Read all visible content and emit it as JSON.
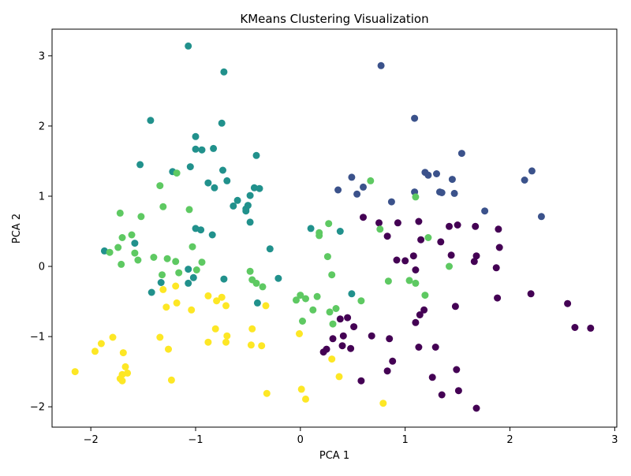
{
  "chart_data": {
    "type": "scatter",
    "title": "KMeans Clustering Visualization",
    "xlabel": "PCA 1",
    "ylabel": "PCA 2",
    "xlim": [
      -2.37,
      3.02
    ],
    "ylim": [
      -2.29,
      3.38
    ],
    "xticks": [
      -2,
      -1,
      0,
      1,
      2,
      3
    ],
    "yticks": [
      -2,
      -1,
      0,
      1,
      2,
      3
    ],
    "grid": false,
    "legend": "none",
    "cluster_colors": [
      "#440154",
      "#3b528b",
      "#21918c",
      "#5ec962",
      "#fde725"
    ],
    "series": [
      {
        "cluster": 0,
        "points": [
          [
            0.6,
            0.7
          ],
          [
            0.75,
            0.62
          ],
          [
            0.93,
            0.62
          ],
          [
            0.83,
            0.43
          ],
          [
            1.13,
            0.64
          ],
          [
            1.15,
            0.38
          ],
          [
            1.42,
            0.57
          ],
          [
            1.5,
            0.59
          ],
          [
            1.34,
            0.35
          ],
          [
            1.67,
            0.57
          ],
          [
            1.89,
            0.53
          ],
          [
            1.44,
            0.16
          ],
          [
            1.68,
            0.15
          ],
          [
            1.66,
            0.07
          ],
          [
            1.9,
            0.27
          ],
          [
            1.08,
            0.15
          ],
          [
            0.92,
            0.09
          ],
          [
            1.0,
            0.08
          ],
          [
            1.1,
            -0.05
          ],
          [
            1.87,
            -0.02
          ],
          [
            2.2,
            -0.39
          ],
          [
            1.88,
            -0.45
          ],
          [
            1.48,
            -0.57
          ],
          [
            1.18,
            -0.62
          ],
          [
            1.14,
            -0.69
          ],
          [
            1.1,
            -0.8
          ],
          [
            0.45,
            -0.73
          ],
          [
            0.38,
            -0.75
          ],
          [
            0.51,
            -0.86
          ],
          [
            0.68,
            -0.99
          ],
          [
            0.41,
            -0.99
          ],
          [
            0.31,
            -1.03
          ],
          [
            0.85,
            -1.03
          ],
          [
            0.4,
            -1.13
          ],
          [
            0.48,
            -1.17
          ],
          [
            0.25,
            -1.18
          ],
          [
            0.22,
            -1.22
          ],
          [
            1.13,
            -1.15
          ],
          [
            1.29,
            -1.15
          ],
          [
            0.88,
            -1.35
          ],
          [
            1.49,
            -1.47
          ],
          [
            0.83,
            -1.49
          ],
          [
            1.26,
            -1.58
          ],
          [
            0.58,
            -1.63
          ],
          [
            1.51,
            -1.77
          ],
          [
            1.35,
            -1.83
          ],
          [
            1.68,
            -2.02
          ],
          [
            2.55,
            -0.53
          ],
          [
            2.62,
            -0.87
          ],
          [
            2.77,
            -0.88
          ]
        ]
      },
      {
        "cluster": 1,
        "points": [
          [
            0.77,
            2.86
          ],
          [
            1.09,
            2.11
          ],
          [
            1.54,
            1.61
          ],
          [
            1.76,
            0.79
          ],
          [
            2.3,
            0.71
          ],
          [
            2.21,
            1.36
          ],
          [
            2.14,
            1.23
          ],
          [
            1.19,
            1.34
          ],
          [
            1.22,
            1.3
          ],
          [
            1.3,
            1.32
          ],
          [
            1.45,
            1.24
          ],
          [
            0.49,
            1.27
          ],
          [
            0.6,
            1.13
          ],
          [
            0.36,
            1.09
          ],
          [
            0.54,
            1.03
          ],
          [
            1.09,
            1.06
          ],
          [
            1.33,
            1.06
          ],
          [
            1.35,
            1.05
          ],
          [
            1.47,
            1.04
          ],
          [
            0.87,
            0.92
          ]
        ]
      },
      {
        "cluster": 2,
        "points": [
          [
            -1.07,
            3.14
          ],
          [
            -0.73,
            2.77
          ],
          [
            -1.43,
            2.08
          ],
          [
            -0.75,
            2.04
          ],
          [
            -1.0,
            1.85
          ],
          [
            -1.0,
            1.67
          ],
          [
            -0.94,
            1.66
          ],
          [
            -0.83,
            1.68
          ],
          [
            -0.42,
            1.58
          ],
          [
            -1.53,
            1.45
          ],
          [
            -1.05,
            1.42
          ],
          [
            -1.22,
            1.35
          ],
          [
            -0.74,
            1.37
          ],
          [
            -0.7,
            1.22
          ],
          [
            -0.88,
            1.19
          ],
          [
            -0.82,
            1.12
          ],
          [
            -0.44,
            1.12
          ],
          [
            -0.39,
            1.11
          ],
          [
            -0.48,
            1.01
          ],
          [
            -0.6,
            0.94
          ],
          [
            -0.64,
            0.86
          ],
          [
            -0.5,
            0.87
          ],
          [
            -0.52,
            0.82
          ],
          [
            -0.52,
            0.79
          ],
          [
            -0.48,
            0.63
          ],
          [
            -1.0,
            0.54
          ],
          [
            -0.95,
            0.52
          ],
          [
            -0.84,
            0.45
          ],
          [
            -1.87,
            0.22
          ],
          [
            -1.58,
            0.33
          ],
          [
            -0.29,
            0.25
          ],
          [
            -1.07,
            -0.04
          ],
          [
            -1.02,
            -0.16
          ],
          [
            -0.73,
            -0.18
          ],
          [
            -1.33,
            -0.23
          ],
          [
            -1.07,
            -0.24
          ],
          [
            -0.21,
            -0.17
          ],
          [
            -1.42,
            -0.37
          ],
          [
            -0.41,
            -0.52
          ],
          [
            0.1,
            0.54
          ],
          [
            0.38,
            0.5
          ],
          [
            0.49,
            -0.39
          ]
        ]
      },
      {
        "cluster": 3,
        "points": [
          [
            -1.34,
            1.15
          ],
          [
            -1.18,
            1.33
          ],
          [
            -1.31,
            0.85
          ],
          [
            -1.72,
            0.76
          ],
          [
            -1.52,
            0.71
          ],
          [
            -1.06,
            0.81
          ],
          [
            -1.7,
            0.41
          ],
          [
            -1.61,
            0.45
          ],
          [
            -1.74,
            0.27
          ],
          [
            -1.82,
            0.2
          ],
          [
            -1.58,
            0.19
          ],
          [
            -1.55,
            0.09
          ],
          [
            -1.4,
            0.13
          ],
          [
            -1.27,
            0.11
          ],
          [
            -1.19,
            0.07
          ],
          [
            -0.94,
            0.06
          ],
          [
            -1.71,
            0.03
          ],
          [
            -1.03,
            0.28
          ],
          [
            -1.16,
            -0.09
          ],
          [
            -0.99,
            -0.05
          ],
          [
            -1.32,
            -0.12
          ],
          [
            -0.48,
            -0.07
          ],
          [
            -0.46,
            -0.19
          ],
          [
            -0.42,
            -0.24
          ],
          [
            -0.36,
            -0.29
          ],
          [
            0.0,
            -0.41
          ],
          [
            -0.04,
            -0.48
          ],
          [
            0.05,
            -0.46
          ],
          [
            0.16,
            -0.43
          ],
          [
            0.18,
            0.44
          ],
          [
            0.18,
            0.48
          ],
          [
            0.27,
            0.61
          ],
          [
            0.67,
            1.22
          ],
          [
            0.76,
            0.53
          ],
          [
            1.1,
            0.99
          ],
          [
            1.22,
            0.41
          ],
          [
            0.26,
            0.14
          ],
          [
            0.3,
            -0.12
          ],
          [
            0.84,
            -0.21
          ],
          [
            1.04,
            -0.2
          ],
          [
            1.1,
            -0.24
          ],
          [
            1.19,
            -0.41
          ],
          [
            1.42,
            0.0
          ],
          [
            0.58,
            -0.49
          ],
          [
            0.34,
            -0.6
          ],
          [
            0.12,
            -0.62
          ],
          [
            0.28,
            -0.65
          ],
          [
            0.02,
            -0.78
          ],
          [
            0.31,
            -0.82
          ]
        ]
      },
      {
        "cluster": 4,
        "points": [
          [
            -1.31,
            -0.33
          ],
          [
            -1.19,
            -0.28
          ],
          [
            -0.88,
            -0.42
          ],
          [
            -0.75,
            -0.44
          ],
          [
            -0.8,
            -0.49
          ],
          [
            -1.18,
            -0.52
          ],
          [
            -0.71,
            -0.56
          ],
          [
            -1.28,
            -0.58
          ],
          [
            -1.04,
            -0.62
          ],
          [
            -0.33,
            -0.56
          ],
          [
            -0.81,
            -0.89
          ],
          [
            -0.46,
            -0.89
          ],
          [
            -1.34,
            -1.01
          ],
          [
            -0.7,
            -0.99
          ],
          [
            -1.79,
            -1.01
          ],
          [
            -0.71,
            -1.08
          ],
          [
            -0.88,
            -1.08
          ],
          [
            -0.47,
            -1.12
          ],
          [
            -0.37,
            -1.13
          ],
          [
            -1.9,
            -1.1
          ],
          [
            -1.96,
            -1.21
          ],
          [
            -1.26,
            -1.18
          ],
          [
            -1.69,
            -1.23
          ],
          [
            -0.01,
            -0.96
          ],
          [
            0.3,
            -1.32
          ],
          [
            -1.67,
            -1.43
          ],
          [
            -1.65,
            -1.52
          ],
          [
            -1.7,
            -1.54
          ],
          [
            -1.72,
            -1.6
          ],
          [
            -1.7,
            -1.63
          ],
          [
            -2.15,
            -1.5
          ],
          [
            -1.23,
            -1.62
          ],
          [
            0.37,
            -1.57
          ],
          [
            0.01,
            -1.75
          ],
          [
            -0.32,
            -1.81
          ],
          [
            0.05,
            -1.89
          ],
          [
            0.79,
            -1.95
          ]
        ]
      }
    ]
  }
}
